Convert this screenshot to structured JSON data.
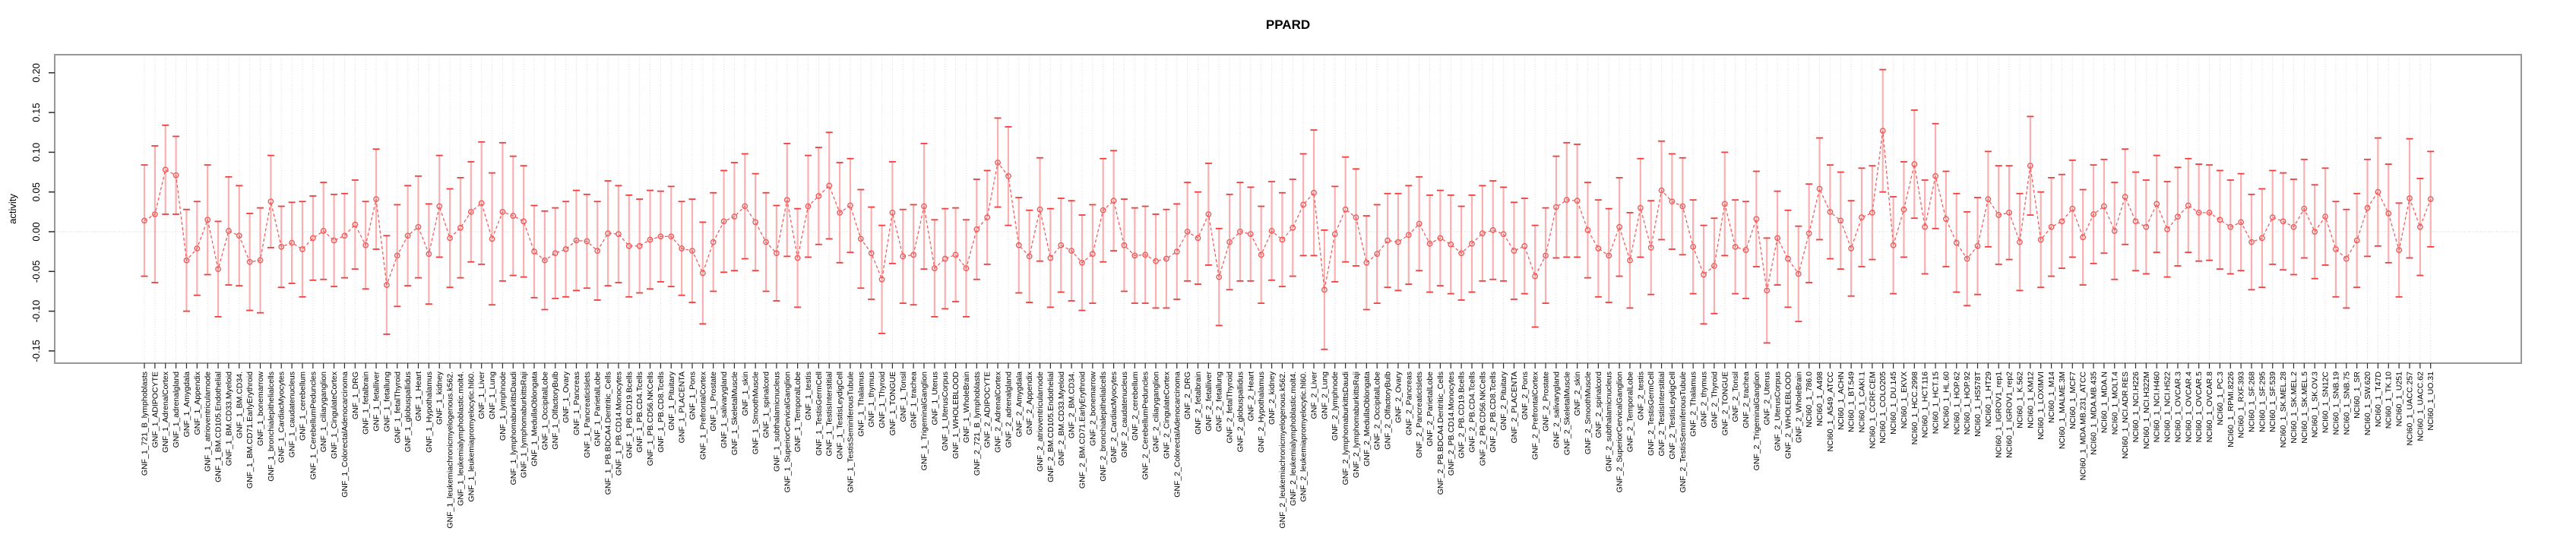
{
  "chart_data": {
    "type": "line",
    "title": "PPARD",
    "ylabel": "activity",
    "xlabel": "",
    "marker": "open-circle",
    "line_style": "dashed",
    "error_bars": true,
    "legend": "none",
    "grid": "vertical dotted line per category, dotted horizontal line at 0",
    "ylim": [
      -0.165,
      0.223
    ],
    "yticks": {
      "values": [
        0.2,
        0.15,
        0.1,
        0.05,
        0.0,
        -0.05,
        -0.1,
        -0.15
      ],
      "labels": [
        "0.20",
        "0.15",
        "0.10",
        "0.05",
        "0.00",
        "-0.05",
        "-0.10",
        "-0.15"
      ]
    },
    "colors": {
      "whisker_stem": "#f8b0b0",
      "whisker_cap": "#ee3e3e",
      "line": "#f25d5d",
      "point": "#ef5a5a",
      "grid": "#d9d9d9",
      "zero_line": "#cfcfcf",
      "box": "#979797",
      "tick": "#2b2b2b",
      "text": "#000000"
    },
    "categories": [
      "GNF_1_721_B_lymphoblasts",
      "GNF_1_ADIPOCYTE",
      "GNF_1_AdrenalCortex",
      "GNF_1_adrenalgland",
      "GNF_1_Amygdala",
      "GNF_1_Appendix",
      "GNF_1_atrioventricularnode",
      "GNF_1_BM.CD105.Endothelial",
      "GNF_1_BM.CD33.Myeloid",
      "GNF_1_BM.CD34.",
      "GNF_1_BM.CD71.EarlyErythroid",
      "GNF_1_bonemarrow",
      "GNF_1_bronchialepithelialcells",
      "GNF_1_CardiacMyocytes",
      "GNF_1_caudatenucleus",
      "GNF_1_cerebellum",
      "GNF_1_CerebellumPeduncles",
      "GNF_1_ciliaryganglion",
      "GNF_1_CingulateCortex",
      "GNF_1_ColorectalAdenocarcinoma",
      "GNF_1_DRG",
      "GNF_1_fetalbrain",
      "GNF_1_fetalliver",
      "GNF_1_fetallung",
      "GNF_1_fetalThyroid",
      "GNF_1_globuspallidus",
      "GNF_1_Heart",
      "GNF_1_Hypothalamus",
      "GNF_1_kidney",
      "GNF_1_leukemiachronicmyelogenous.k562.",
      "GNF_1_leukemialymphoblastic.molt4.",
      "GNF_1_leukemiapromyelocytic.hl60.",
      "GNF_1_Liver",
      "GNF_1_Lung",
      "GNF_1_lymphnode",
      "GNF_1_lymphomaburkittsDaudi",
      "GNF_1_lymphomaburkittsRaji",
      "GNF_1_MedullaOblongata",
      "GNF_1_OccipitalLobe",
      "GNF_1_OlfactoryBulb",
      "GNF_1_Ovary",
      "GNF_1_Pancreas",
      "GNF_1_PancreaticIslets",
      "GNF_1_ParietalLobe",
      "GNF_1_PB.BDCA4.Dentritic_Cells",
      "GNF_1_PB.CD14.Monocytes",
      "GNF_1_PB.CD19.Bcells",
      "GNF_1_PB.CD4.Tcells",
      "GNF_1_PB.CD56.NKCells",
      "GNF_1_PB.CD8.Tcells",
      "GNF_1_Pituitary",
      "GNF_1_PLACENTA",
      "GNF_1_Pons",
      "GNF_1_PrefrontalCortex",
      "GNF_1_Prostate",
      "GNF_1_salivarygland",
      "GNF_1_SkeletalMuscle",
      "GNF_1_skin",
      "GNF_1_SmoothMuscle",
      "GNF_1_spinalcord",
      "GNF_1_subthalamicnucleus",
      "GNF_1_SuperiorCervicalGanglion",
      "GNF_1_TemporalLobe",
      "GNF_1_testis",
      "GNF_1_TestisGermCell",
      "GNF_1_TestisInterstitial",
      "GNF_1_TestisLeydigCell",
      "GNF_1_TestisSeminiferousTubule",
      "GNF_1_Thalamus",
      "GNF_1_thymus",
      "GNF_1_Thyroid",
      "GNF_1_TONGUE",
      "GNF_1_Tonsil",
      "GNF_1_trachea",
      "GNF_1_TrigeminalGanglion",
      "GNF_1_Uterus",
      "GNF_1_UterusCorpus",
      "GNF_1_WHOLEBLOOD",
      "GNF_1_WholeBrain",
      "GNF_2_721_B_lymphoblasts",
      "GNF_2_ADIPOCYTE",
      "GNF_2_AdrenalCortex",
      "GNF_2_adrenalgland",
      "GNF_2_Amygdala",
      "GNF_2_Appendix",
      "GNF_2_atrioventricularnode",
      "GNF_2_BM.CD105.Endothelial",
      "GNF_2_BM.CD33.Myeloid",
      "GNF_2_BM.CD34.",
      "GNF_2_BM.CD71.EarlyErythroid",
      "GNF_2_bonemarrow",
      "GNF_2_bronchialepithelialcells",
      "GNF_2_CardiacMyocytes",
      "GNF_2_caudatenucleus",
      "GNF_2_cerebellum",
      "GNF_2_CerebellumPeduncles",
      "GNF_2_ciliaryganglion",
      "GNF_2_CingulateCortex",
      "GNF_2_ColorectalAdenocarcinoma",
      "GNF_2_DRG",
      "GNF_2_fetalbrain",
      "GNF_2_fetalliver",
      "GNF_2_fetallung",
      "GNF_2_fetalThyroid",
      "GNF_2_globuspallidus",
      "GNF_2_Heart",
      "GNF_2_Hypothalamus",
      "GNF_2_kidney",
      "GNF_2_leukemiachronicmyelogenous.k562.",
      "GNF_2_leukemialymphoblastic.molt4.",
      "GNF_2_leukemiapromyelocytic.hl60.",
      "GNF_2_Liver",
      "GNF_2_Lung",
      "GNF_2_lymphnode",
      "GNF_2_lymphomaburkittsDaudi",
      "GNF_2_lymphomaburkittsRaji",
      "GNF_2_MedullaOblongata",
      "GNF_2_OccipitalLobe",
      "GNF_2_OlfactoryBulb",
      "GNF_2_Ovary",
      "GNF_2_Pancreas",
      "GNF_2_PancreaticIslets",
      "GNF_2_ParietalLobe",
      "GNF_2_PB.BDCA4.Dentritic_Cells",
      "GNF_2_PB.CD14.Monocytes",
      "GNF_2_PB.CD19.Bcells",
      "GNF_2_PB.CD4.Tcells",
      "GNF_2_PB.CD56.NKCells",
      "GNF_2_PB.CD8.Tcells",
      "GNF_2_Pituitary",
      "GNF_2_PLACENTA",
      "GNF_2_Pons",
      "GNF_2_PrefrontalCortex",
      "GNF_2_Prostate",
      "GNF_2_salivarygland",
      "GNF_2_SkeletalMuscle",
      "GNF_2_skin",
      "GNF_2_SmoothMuscle",
      "GNF_2_spinalcord",
      "GNF_2_subthalamicnucleus",
      "GNF_2_SuperiorCervicalGanglion",
      "GNF_2_TemporalLobe",
      "GNF_2_testis",
      "GNF_2_TestisGermCell",
      "GNF_2_TestisInterstitial",
      "GNF_2_TestisLeydigCell",
      "GNF_2_TestisSeminiferousTubule",
      "GNF_2_Thalamus",
      "GNF_2_thymus",
      "GNF_2_Thyroid",
      "GNF_2_TONGUE",
      "GNF_2_Tonsil",
      "GNF_2_trachea",
      "GNF_2_TrigeminalGanglion",
      "GNF_2_Uterus",
      "GNF_2_UterusCorpus",
      "GNF_2_WHOLEBLOOD",
      "GNF_2_WholeBrain",
      "NCI60_1_786.0",
      "NCI60_1_A498",
      "NCI60_1_A549_ATCC",
      "NCI60_1_ACHN",
      "NCI60_1_BT.549",
      "NCI60_1_CAKI.1",
      "NCI60_1_CCRF.CEM",
      "NCI60_1_COLO205",
      "NCI60_1_DU.145",
      "NCI60_1_EKVX",
      "NCI60_1_HCC.2998",
      "NCI60_1_HCT.116",
      "NCI60_1_HCT.15",
      "NCI60_1_HL.60",
      "NCI60_1_HOP.62",
      "NCI60_1_HOP.92",
      "NCI60_1_HS578T",
      "NCI60_1_HT29",
      "NCI60_1_IGROV1_rep1",
      "NCI60_1_IGROV1_rep2",
      "NCI60_1_K.562",
      "NCI60_1_KM12",
      "NCI60_1_LOXIMVI",
      "NCI60_1_M14",
      "NCI60_1_MALME.3M",
      "NCI60_1_MCF7",
      "NCI60_1_MDA.MB.231_ATCC",
      "NCI60_1_MDA.MB.435",
      "NCI60_1_MDA.N",
      "NCI60_1_MOLT.4",
      "NCI60_1_NCI.ADR.RES",
      "NCI60_1_NCI.H226",
      "NCI60_1_NCI.H322M",
      "NCI60_1_NCI.H460",
      "NCI60_1_NCI.H522",
      "NCI60_1_OVCAR.3",
      "NCI60_1_OVCAR.4",
      "NCI60_1_OVCAR.5",
      "NCI60_1_OVCAR.8",
      "NCI60_1_PC.3",
      "NCI60_1_RPMI.8226",
      "NCI60_1_RXF.393",
      "NCI60_1_SF.268",
      "NCI60_1_SF.295",
      "NCI60_1_SF.539",
      "NCI60_1_SK.MEL.28",
      "NCI60_1_SK.MEL.2",
      "NCI60_1_SK.MEL.5",
      "NCI60_1_SK.OV.3",
      "NCI60_1_SN12C",
      "NCI60_1_SNB.19",
      "NCI60_1_SNB.75",
      "NCI60_1_SR",
      "NCI60_1_SW.620",
      "NCI60_1_T47D",
      "NCI60_1_TK.10",
      "NCI60_1_U251",
      "NCI60_1_UACC.257",
      "NCI60_1_UACC.62",
      "NCI60_1_UO.31"
    ],
    "means": [
      0.014,
      0.022,
      0.078,
      0.071,
      -0.036,
      -0.021,
      0.015,
      -0.047,
      0.001,
      -0.005,
      -0.038,
      -0.036,
      0.038,
      -0.019,
      -0.014,
      -0.022,
      -0.008,
      0.001,
      -0.011,
      -0.005,
      0.009,
      -0.017,
      0.041,
      -0.067,
      -0.03,
      -0.005,
      0.006,
      -0.028,
      0.032,
      -0.008,
      0.005,
      0.025,
      0.036,
      -0.009,
      0.025,
      0.02,
      0.013,
      -0.025,
      -0.036,
      -0.027,
      -0.022,
      -0.011,
      -0.012,
      -0.024,
      -0.002,
      -0.003,
      -0.018,
      -0.018,
      -0.01,
      -0.006,
      -0.006,
      -0.021,
      -0.024,
      -0.052,
      -0.013,
      0.013,
      0.019,
      0.032,
      0.012,
      -0.013,
      -0.027,
      0.04,
      -0.033,
      0.032,
      0.045,
      0.058,
      0.024,
      0.033,
      -0.009,
      -0.027,
      -0.06,
      0.024,
      -0.031,
      -0.029,
      0.032,
      -0.046,
      -0.034,
      -0.029,
      -0.046,
      0.003,
      0.018,
      0.087,
      0.07,
      -0.017,
      -0.031,
      0.028,
      -0.033,
      -0.017,
      -0.024,
      -0.039,
      -0.028,
      0.027,
      0.039,
      -0.017,
      -0.03,
      -0.029,
      -0.037,
      -0.034,
      -0.025,
      0.0,
      -0.008,
      0.022,
      -0.057,
      -0.013,
      0.0,
      -0.003,
      -0.029,
      0.001,
      -0.01,
      0.005,
      0.034,
      0.049,
      -0.073,
      -0.003,
      0.028,
      0.018,
      -0.039,
      -0.028,
      -0.011,
      -0.013,
      -0.004,
      0.01,
      -0.015,
      -0.008,
      -0.016,
      -0.027,
      -0.015,
      -0.002,
      0.002,
      -0.003,
      -0.024,
      -0.018,
      -0.056,
      -0.03,
      0.031,
      0.04,
      0.039,
      0.002,
      -0.021,
      -0.03,
      0.006,
      -0.036,
      0.03,
      -0.02,
      0.052,
      0.038,
      0.032,
      -0.019,
      -0.054,
      -0.043,
      0.035,
      -0.019,
      -0.023,
      0.016,
      -0.074,
      -0.008,
      -0.034,
      -0.053,
      -0.002,
      0.054,
      0.025,
      0.014,
      -0.021,
      0.018,
      0.024,
      0.127,
      -0.017,
      0.028,
      0.085,
      0.006,
      0.07,
      0.016,
      -0.014,
      -0.034,
      -0.018,
      0.041,
      0.021,
      0.024,
      -0.013,
      0.083,
      -0.01,
      0.006,
      0.013,
      0.029,
      -0.007,
      0.022,
      0.032,
      0.001,
      0.044,
      0.013,
      0.006,
      0.035,
      0.003,
      0.019,
      0.033,
      0.024,
      0.024,
      0.015,
      0.006,
      0.012,
      -0.013,
      -0.008,
      0.018,
      0.013,
      0.006,
      0.029,
      0.0,
      0.019,
      -0.022,
      -0.034,
      -0.011,
      0.03,
      0.05,
      0.023,
      -0.023,
      0.042,
      0.006,
      0.041
    ],
    "errors": [
      0.07,
      0.086,
      0.056,
      0.049,
      0.064,
      0.059,
      0.069,
      0.06,
      0.068,
      0.063,
      0.061,
      0.066,
      0.058,
      0.051,
      0.051,
      0.06,
      0.053,
      0.061,
      0.058,
      0.053,
      0.056,
      0.055,
      0.063,
      0.062,
      0.064,
      0.063,
      0.064,
      0.063,
      0.064,
      0.062,
      0.063,
      0.063,
      0.077,
      0.083,
      0.087,
      0.075,
      0.07,
      0.058,
      0.062,
      0.057,
      0.06,
      0.063,
      0.059,
      0.062,
      0.066,
      0.061,
      0.064,
      0.059,
      0.062,
      0.057,
      0.063,
      0.059,
      0.065,
      0.064,
      0.062,
      0.064,
      0.068,
      0.066,
      0.061,
      0.062,
      0.06,
      0.071,
      0.062,
      0.064,
      0.061,
      0.067,
      0.063,
      0.059,
      0.062,
      0.058,
      0.068,
      0.064,
      0.059,
      0.063,
      0.079,
      0.061,
      0.063,
      0.059,
      0.061,
      0.063,
      0.059,
      0.056,
      0.062,
      0.06,
      0.058,
      0.065,
      0.062,
      0.059,
      0.063,
      0.06,
      0.062,
      0.065,
      0.063,
      0.058,
      0.06,
      0.061,
      0.059,
      0.062,
      0.06,
      0.062,
      0.058,
      0.064,
      0.061,
      0.06,
      0.062,
      0.059,
      0.061,
      0.062,
      0.059,
      0.061,
      0.064,
      0.079,
      0.075,
      0.06,
      0.066,
      0.061,
      0.059,
      0.062,
      0.059,
      0.061,
      0.062,
      0.059,
      0.061,
      0.06,
      0.062,
      0.059,
      0.061,
      0.06,
      0.062,
      0.059,
      0.061,
      0.06,
      0.064,
      0.06,
      0.064,
      0.072,
      0.071,
      0.06,
      0.061,
      0.059,
      0.062,
      0.06,
      0.062,
      0.059,
      0.062,
      0.06,
      0.061,
      0.059,
      0.062,
      0.06,
      0.065,
      0.059,
      0.061,
      0.06,
      0.066,
      0.059,
      0.061,
      0.06,
      0.062,
      0.064,
      0.059,
      0.061,
      0.06,
      0.062,
      0.059,
      0.077,
      0.061,
      0.06,
      0.068,
      0.059,
      0.066,
      0.06,
      0.062,
      0.059,
      0.061,
      0.06,
      0.062,
      0.059,
      0.061,
      0.062,
      0.06,
      0.062,
      0.059,
      0.061,
      0.06,
      0.062,
      0.059,
      0.061,
      0.06,
      0.062,
      0.059,
      0.061,
      0.06,
      0.062,
      0.059,
      0.061,
      0.06,
      0.062,
      0.059,
      0.061,
      0.06,
      0.062,
      0.059,
      0.061,
      0.06,
      0.062,
      0.059,
      0.061,
      0.06,
      0.062,
      0.059,
      0.061,
      0.068,
      0.062,
      0.059,
      0.075,
      0.061,
      0.06
    ]
  }
}
